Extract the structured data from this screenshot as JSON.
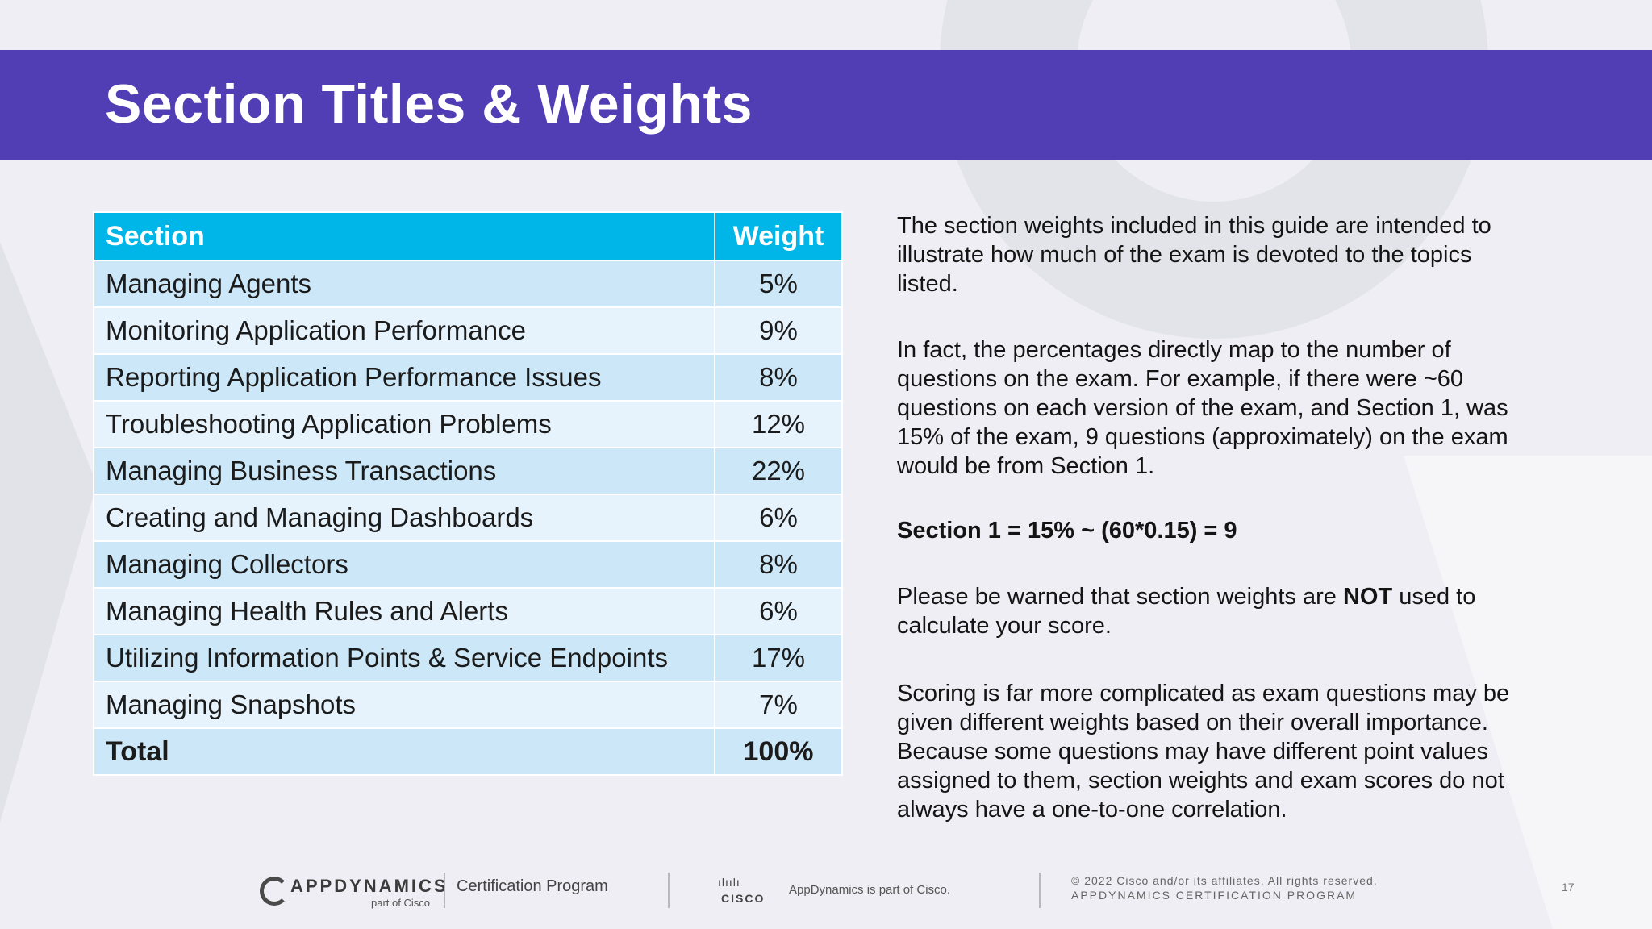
{
  "title": "Section Titles & Weights",
  "table": {
    "headers": {
      "section": "Section",
      "weight": "Weight"
    },
    "rows": [
      {
        "section": "Managing Agents",
        "weight": "5%"
      },
      {
        "section": "Monitoring Application Performance",
        "weight": "9%"
      },
      {
        "section": "Reporting Application Performance Issues",
        "weight": "8%"
      },
      {
        "section": "Troubleshooting Application Problems",
        "weight": "12%"
      },
      {
        "section": "Managing Business Transactions",
        "weight": "22%"
      },
      {
        "section": "Creating and Managing Dashboards",
        "weight": "6%"
      },
      {
        "section": "Managing Collectors",
        "weight": "8%"
      },
      {
        "section": "Managing Health Rules and Alerts",
        "weight": "6%"
      },
      {
        "section": "Utilizing Information Points & Service Endpoints",
        "weight": "17%"
      },
      {
        "section": "Managing Snapshots",
        "weight": "7%"
      }
    ],
    "total": {
      "section": "Total",
      "weight": "100%"
    }
  },
  "body": {
    "p1": "The section weights included in this guide are intended to illustrate how much of the exam is devoted to the topics listed.",
    "p2": "In fact, the percentages directly map to the number of questions on the exam. For example, if there were ~60 questions on each version of the exam, and Section 1, was 15% of the exam, 9 questions (approximately) on the exam would be from Section 1.",
    "p3": "Section 1 = 15% ~ (60*0.15) = 9",
    "p4_before": "Please be warned that section weights are ",
    "p4_bold": "NOT",
    "p4_after": " used to calculate your score.",
    "p5": "Scoring is far more complicated as exam questions may be given different weights based on their overall importance. Because some questions may have different point values assigned to them, section weights and exam scores do not always have a one-to-one correlation."
  },
  "footer": {
    "brand": "APPDYNAMICS",
    "brand_sub": "part of Cisco",
    "program": "Certification Program",
    "cisco_bars": "ılıılı",
    "cisco_word": "CISCO",
    "part_of": "AppDynamics is part of Cisco.",
    "copyright": "© 2022 Cisco and/or its affiliates. All rights reserved.",
    "program_caps": "APPDYNAMICS CERTIFICATION PROGRAM",
    "page_number": "17"
  },
  "colors": {
    "header_bg": "#513eb5",
    "table_header_bg": "#00b5e7",
    "row_odd": "#cce8f8",
    "row_even": "#e6f3fc"
  }
}
